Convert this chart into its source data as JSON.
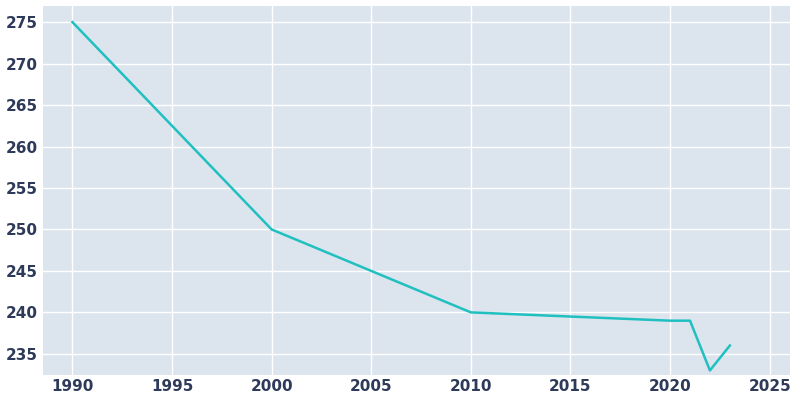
{
  "years": [
    1990,
    2000,
    2010,
    2020,
    2021,
    2022,
    2023
  ],
  "population": [
    275,
    250,
    240,
    239,
    239,
    233,
    236
  ],
  "line_color": "#20C0C0",
  "plot_bg_color": "#DCE4EE",
  "fig_bg_color": "#FFFFFF",
  "grid_color": "#FFFFFF",
  "text_color": "#2E3A59",
  "xlim": [
    1988.5,
    2026
  ],
  "ylim": [
    232.5,
    277
  ],
  "xticks": [
    1990,
    1995,
    2000,
    2005,
    2010,
    2015,
    2020,
    2025
  ],
  "yticks": [
    235,
    240,
    245,
    250,
    255,
    260,
    265,
    270,
    275
  ],
  "linewidth": 1.8,
  "figsize": [
    8.0,
    4.0
  ],
  "dpi": 100,
  "label_fontsize": 11
}
